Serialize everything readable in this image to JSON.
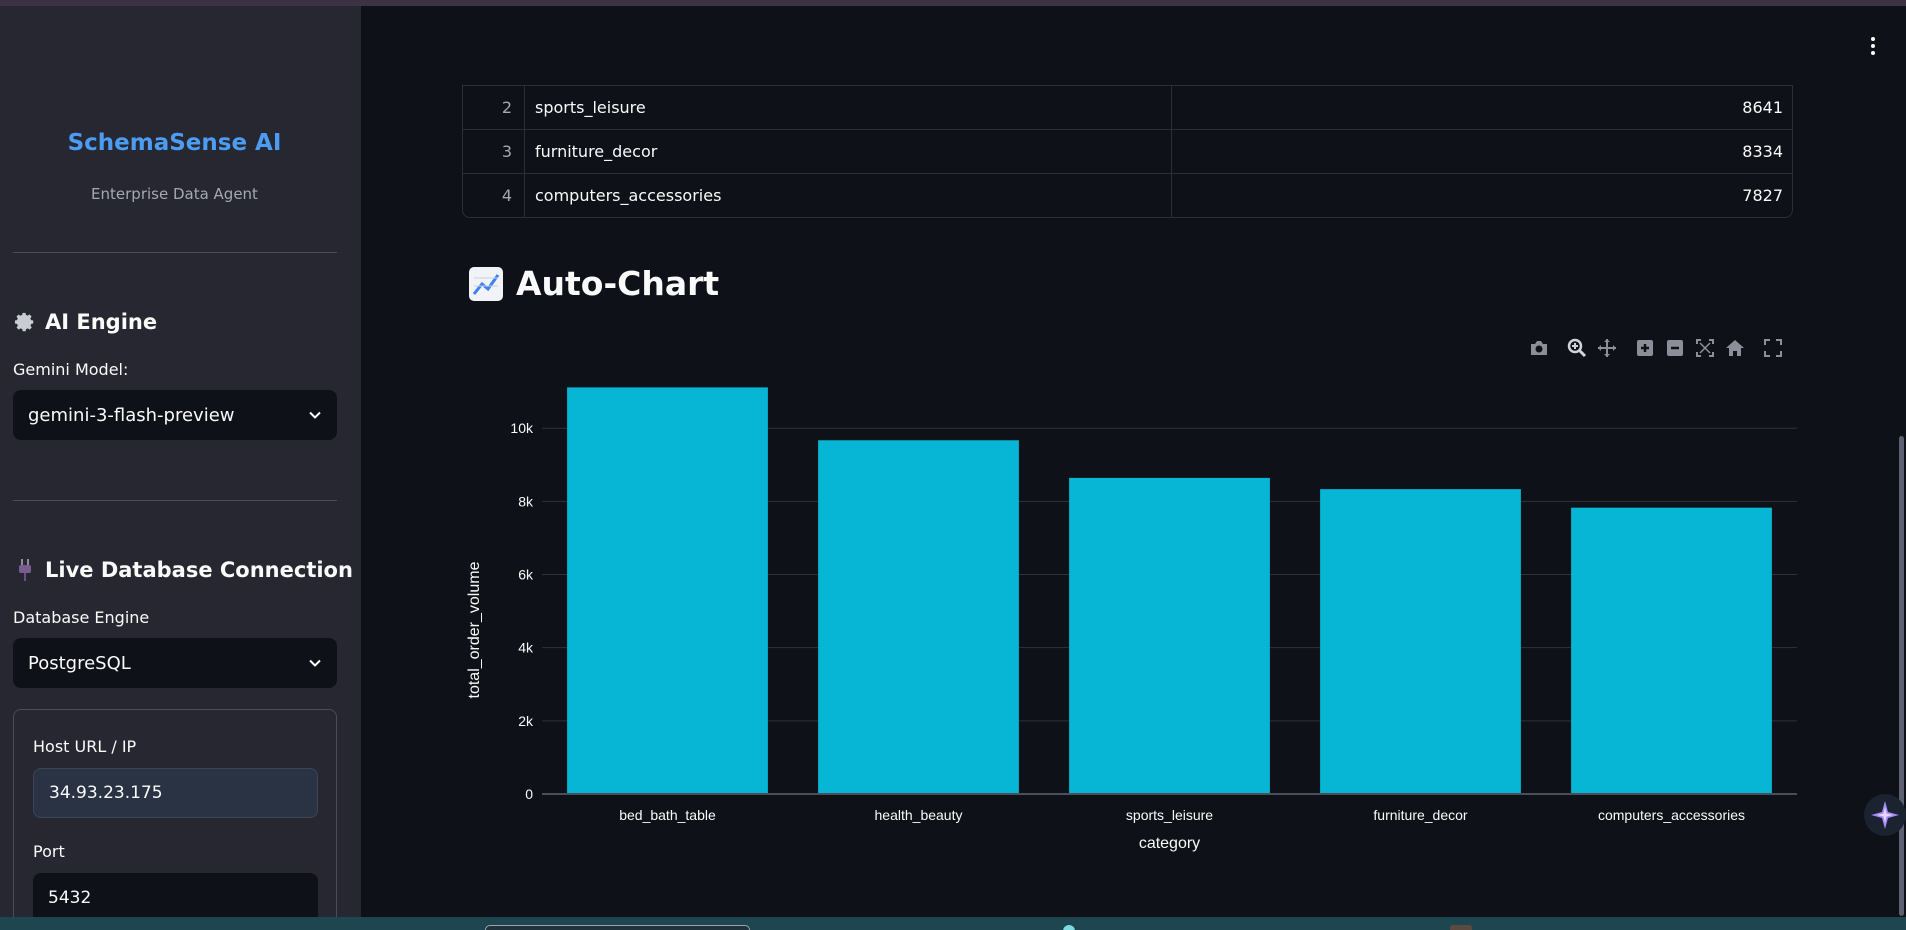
{
  "sidebar": {
    "brand": "SchemaSense AI",
    "tagline": "Enterprise Data Agent",
    "ai_engine": {
      "title": "AI Engine",
      "model_label": "Gemini Model:",
      "model_value": "gemini-3-flash-preview"
    },
    "db": {
      "title": "Live Database Connection",
      "engine_label": "Database Engine",
      "engine_value": "PostgreSQL",
      "host_label": "Host URL / IP",
      "host_value": "34.93.23.175",
      "port_label": "Port",
      "port_value": "5432"
    }
  },
  "table": {
    "rows": [
      {
        "index": "2",
        "category": "sports_leisure",
        "volume": "8641"
      },
      {
        "index": "3",
        "category": "furniture_decor",
        "volume": "8334"
      },
      {
        "index": "4",
        "category": "computers_accessories",
        "volume": "7827"
      }
    ]
  },
  "chart_section": {
    "title": "Auto-Chart"
  },
  "chart_data": {
    "type": "bar",
    "categories": [
      "bed_bath_table",
      "health_beauty",
      "sports_leisure",
      "furniture_decor",
      "computers_accessories"
    ],
    "values": [
      11115,
      9670,
      8641,
      8334,
      7827
    ],
    "xlabel": "category",
    "ylabel": "total_order_volume",
    "ylim": [
      0,
      11700
    ],
    "yticks": [
      0,
      2000,
      4000,
      6000,
      8000,
      10000
    ],
    "ytick_labels": [
      "0",
      "2k",
      "4k",
      "6k",
      "8k",
      "10k"
    ],
    "grid": true,
    "bar_color": "#06b6d4"
  },
  "colors": {
    "accent": "#4b9cf2",
    "bar": "#06b6d4",
    "background": "#0e1117",
    "sidebar": "#262730"
  }
}
